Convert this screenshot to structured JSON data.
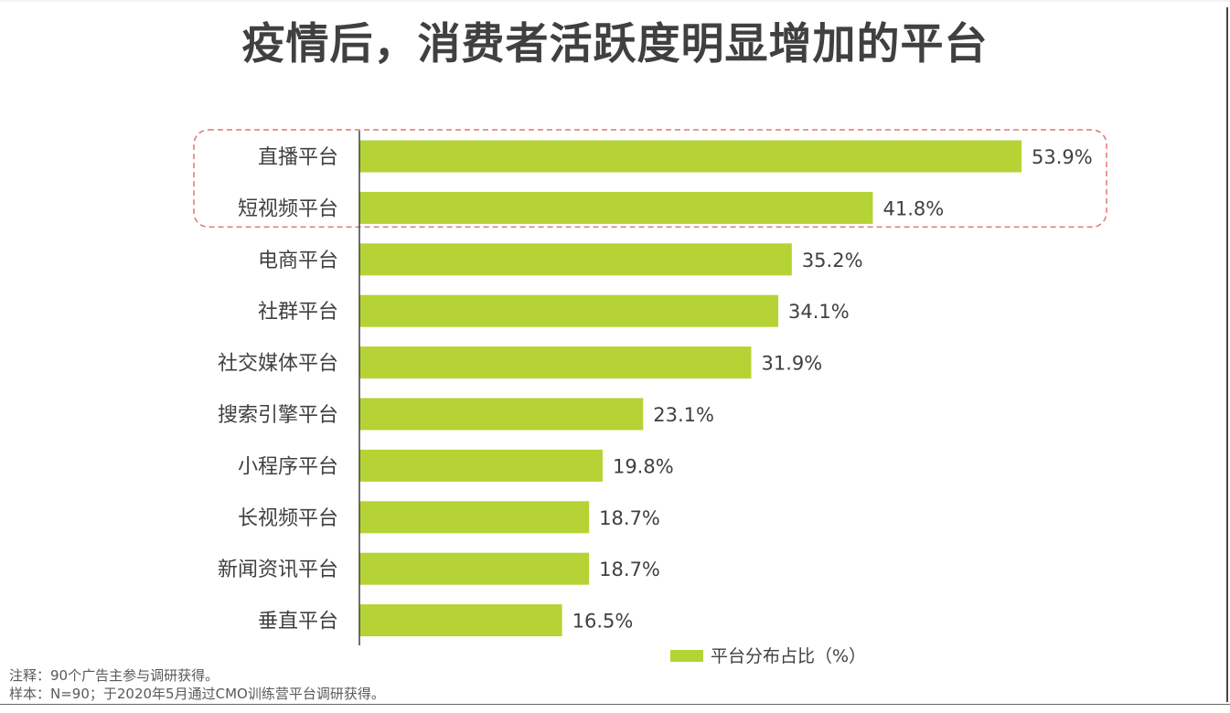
{
  "title": "疫情后，消费者活跃度明显增加的平台",
  "chart_data": {
    "type": "bar",
    "orientation": "horizontal",
    "categories": [
      "直播平台",
      "短视频平台",
      "电商平台",
      "社群平台",
      "社交媒体平台",
      "搜索引擎平台",
      "小程序平台",
      "长视频平台",
      "新闻资讯平台",
      "垂直平台"
    ],
    "series": [
      {
        "name": "平台分布占比（%）",
        "values": [
          53.9,
          41.8,
          35.2,
          34.1,
          31.9,
          23.1,
          19.8,
          18.7,
          18.7,
          16.5
        ],
        "labels": [
          "53.9%",
          "41.8%",
          "35.2%",
          "34.1%",
          "31.9%",
          "23.1%",
          "19.8%",
          "18.7%",
          "18.7%",
          "16.5%"
        ]
      }
    ],
    "highlighted_categories": [
      "直播平台",
      "短视频平台"
    ],
    "bar_color": "#b5d334",
    "highlight_color": "#e57373",
    "legend_position": "bottom-right",
    "grid": false
  },
  "notes": {
    "note": "注释：90个广告主参与调研获得。",
    "sample": "样本：N=90；于2020年5月通过CMO训练营平台调研获得。"
  }
}
